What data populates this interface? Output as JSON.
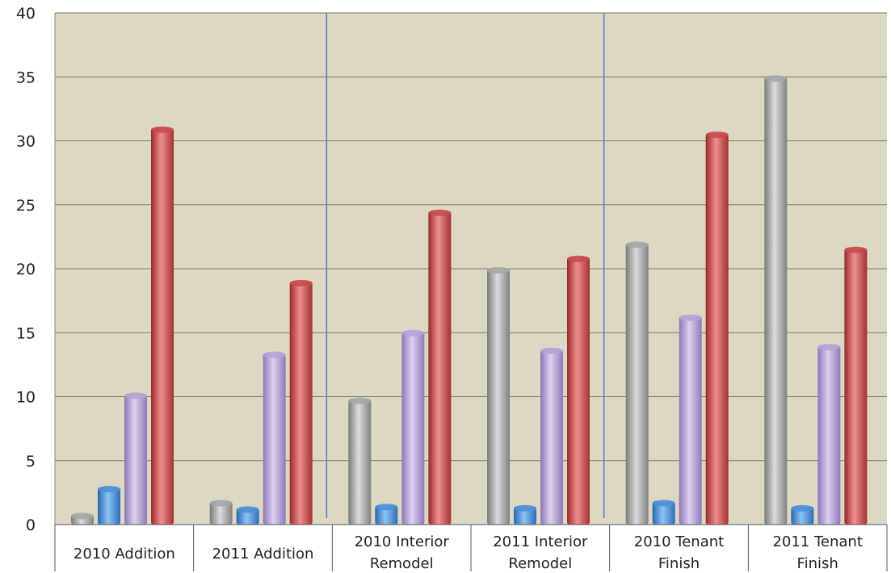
{
  "chart_data": {
    "type": "bar",
    "title": "",
    "xlabel": "",
    "ylabel": "",
    "ylim": [
      0,
      40
    ],
    "yticks": [
      0,
      5,
      10,
      15,
      20,
      25,
      30,
      35,
      40
    ],
    "grid": true,
    "legend": "none",
    "categories": [
      [
        "2010 Addition"
      ],
      [
        "2011 Addition"
      ],
      [
        "2010 Interior",
        "Remodel"
      ],
      [
        "2011 Interior",
        "Remodel"
      ],
      [
        "2010 Tenant",
        "Finish"
      ],
      [
        "2011 Tenant",
        "Finish"
      ]
    ],
    "series": [
      {
        "color": "#a6a6a6",
        "values": [
          0.8,
          1.8,
          9.8,
          20.0,
          22.0,
          35.0
        ]
      },
      {
        "color": "#4f8fd6",
        "values": [
          2.9,
          1.3,
          1.5,
          1.4,
          1.8,
          1.4
        ]
      },
      {
        "color": "#b6a2d4",
        "values": [
          10.2,
          13.4,
          15.1,
          13.7,
          16.3,
          14.0
        ]
      },
      {
        "color": "#c84d4d",
        "values": [
          31.0,
          19.0,
          24.5,
          20.9,
          30.6,
          21.6
        ]
      }
    ],
    "plot_background": "#dcd8c4",
    "separator_color": "#4f7fbf"
  }
}
